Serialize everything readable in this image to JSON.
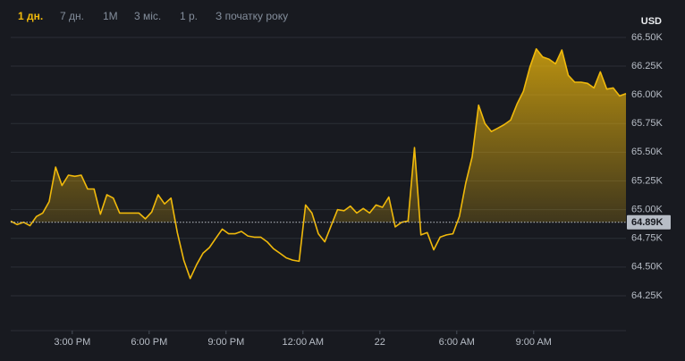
{
  "tabs": [
    "1 дн.",
    "7 дн.",
    "1M",
    "3 міс.",
    "1 р.",
    "З початку року"
  ],
  "active_tab": "1 дн.",
  "chart_data": {
    "type": "area-line",
    "y_unit_label": "USD",
    "color": "#f0b90b",
    "x": [
      12.6,
      12.85,
      13.1,
      13.35,
      13.6,
      13.85,
      14.1,
      14.35,
      14.6,
      14.85,
      15.1,
      15.35,
      15.6,
      15.85,
      16.1,
      16.35,
      16.6,
      16.85,
      17.1,
      17.35,
      17.6,
      17.85,
      18.1,
      18.35,
      18.6,
      18.85,
      19.1,
      19.35,
      19.6,
      19.85,
      20.1,
      20.35,
      20.6,
      20.85,
      21.1,
      21.35,
      21.6,
      21.85,
      22.1,
      22.35,
      22.6,
      22.85,
      23.1,
      23.35,
      23.6,
      23.85,
      24.1,
      24.35,
      24.6,
      24.85,
      25.1,
      25.35,
      25.6,
      25.85,
      26.1,
      26.35,
      26.6,
      26.85,
      27.1,
      27.35,
      27.6,
      27.85,
      28.1,
      28.35,
      28.6,
      28.85,
      29.1,
      29.35,
      29.6,
      29.85,
      30.1,
      30.35,
      30.6,
      30.85,
      31.1,
      31.35,
      31.6,
      31.85,
      32.1,
      32.35,
      32.6,
      32.85,
      33.1,
      33.35,
      33.6,
      33.85,
      34.1,
      34.35,
      34.6,
      34.85,
      35.1,
      35.35,
      35.6,
      35.85,
      36.1,
      36.35,
      36.6
    ],
    "values": [
      64.9,
      64.87,
      64.89,
      64.86,
      64.94,
      64.97,
      65.07,
      65.37,
      65.21,
      65.3,
      65.29,
      65.3,
      65.18,
      65.18,
      64.96,
      65.13,
      65.1,
      64.97,
      64.97,
      64.97,
      64.97,
      64.92,
      64.98,
      65.13,
      65.05,
      65.1,
      64.8,
      64.56,
      64.4,
      64.52,
      64.62,
      64.67,
      64.75,
      64.83,
      64.79,
      64.79,
      64.81,
      64.77,
      64.76,
      64.76,
      64.72,
      64.66,
      64.62,
      64.58,
      64.56,
      64.55,
      65.04,
      64.97,
      64.79,
      64.72,
      64.86,
      65.0,
      64.99,
      65.03,
      64.97,
      65.01,
      64.97,
      65.04,
      65.02,
      65.11,
      64.85,
      64.89,
      64.9,
      65.54,
      64.78,
      64.8,
      64.65,
      64.76,
      64.78,
      64.79,
      64.94,
      65.23,
      65.46,
      65.91,
      65.75,
      65.68,
      65.71,
      65.74,
      65.78,
      65.92,
      66.03,
      66.24,
      66.4,
      66.33,
      66.31,
      66.27,
      66.39,
      66.17,
      66.11,
      66.11,
      66.1,
      66.06,
      66.2,
      66.05,
      66.06,
      65.99,
      66.01
    ],
    "xlim": [
      12.6,
      36.6
    ],
    "xticks": [
      {
        "value": 15,
        "label": "3:00 PM"
      },
      {
        "value": 18,
        "label": "6:00 PM"
      },
      {
        "value": 21,
        "label": "9:00 PM"
      },
      {
        "value": 24,
        "label": "12:00 AM"
      },
      {
        "value": 27,
        "label": "22"
      },
      {
        "value": 30,
        "label": "6:00 AM"
      },
      {
        "value": 33,
        "label": "9:00 AM"
      }
    ],
    "ylim": [
      63.95,
      66.53
    ],
    "yticks": [
      {
        "value": 64.25,
        "label": "64.25K"
      },
      {
        "value": 64.5,
        "label": "64.50K"
      },
      {
        "value": 64.75,
        "label": "64.75K"
      },
      {
        "value": 65,
        "label": "65.00K"
      },
      {
        "value": 65.25,
        "label": "65.25K"
      },
      {
        "value": 65.5,
        "label": "65.50K"
      },
      {
        "value": 65.75,
        "label": "65.75K"
      },
      {
        "value": 66,
        "label": "66.00K"
      },
      {
        "value": 66.25,
        "label": "66.25K"
      },
      {
        "value": 66.5,
        "label": "66.50K"
      }
    ],
    "grid": true,
    "current_price": {
      "value": 64.89,
      "label": "64.89K"
    }
  }
}
